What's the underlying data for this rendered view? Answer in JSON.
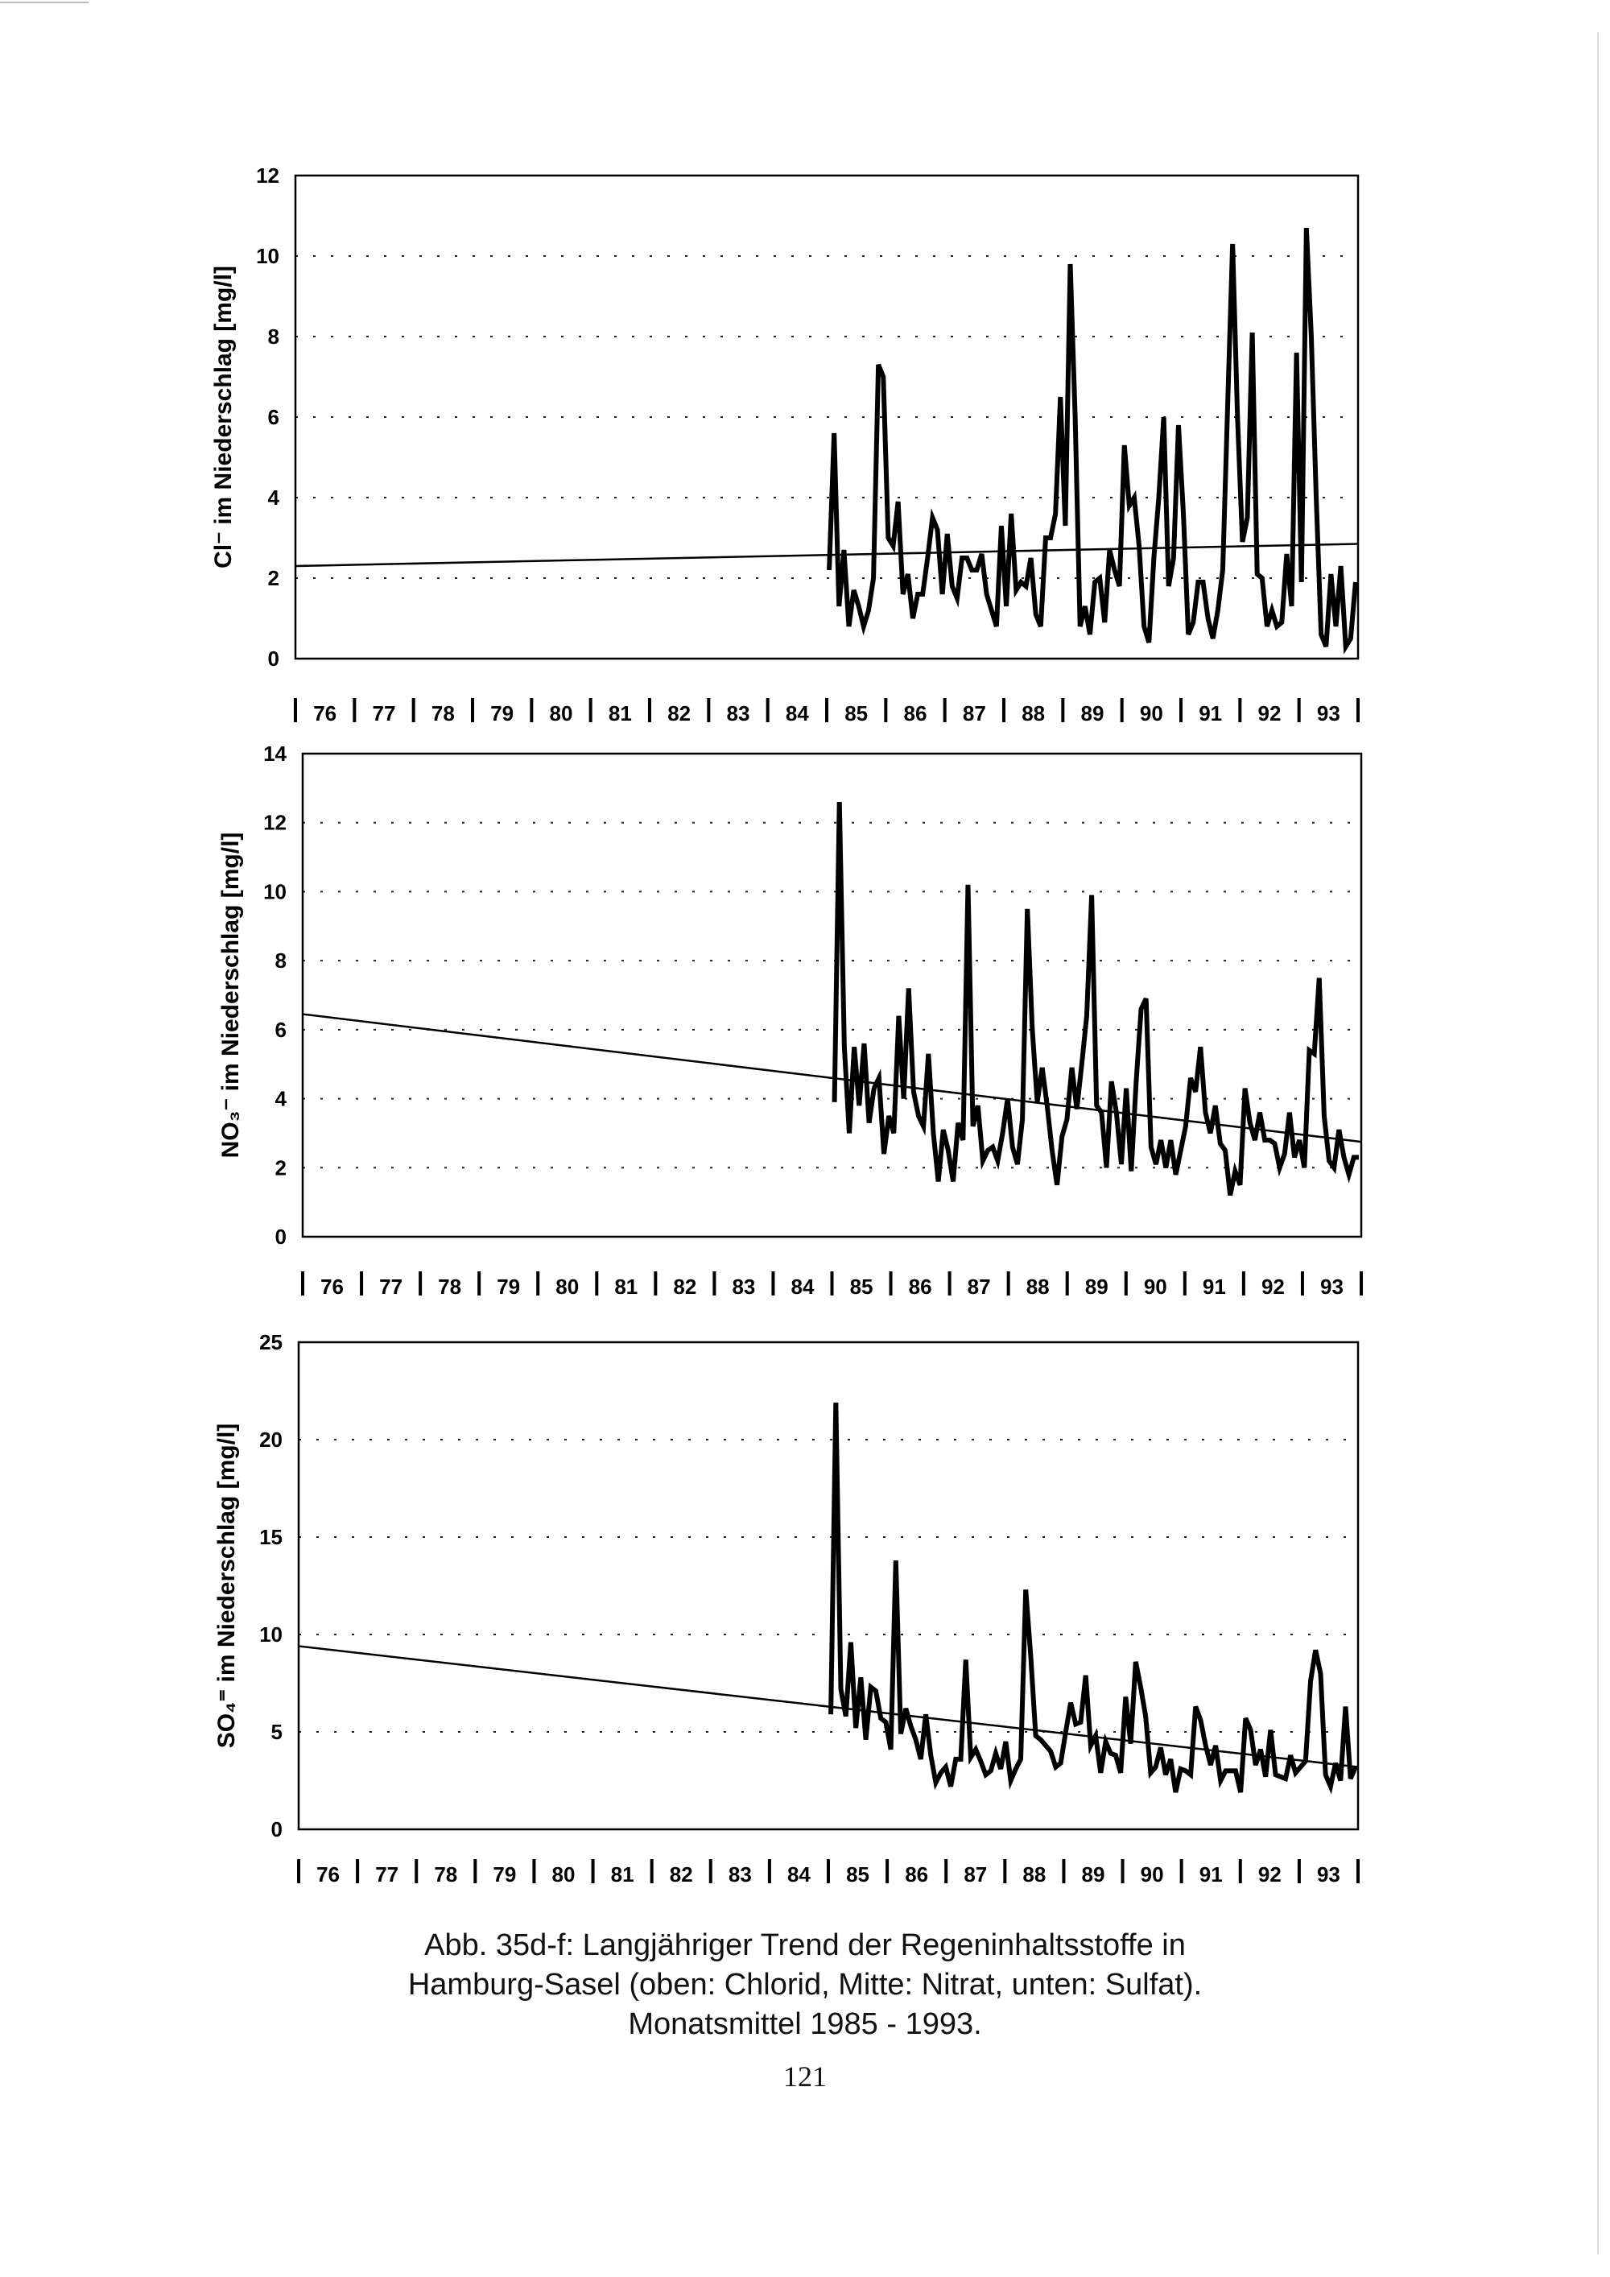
{
  "chart_data": [
    {
      "type": "line",
      "title": "",
      "xlabel": "",
      "ylabel": "Cl⁻ im Niederschlag [mg/l]",
      "ylim": [
        0,
        12
      ],
      "yticks": [
        0,
        2,
        4,
        6,
        8,
        10,
        12
      ],
      "xlim": [
        76,
        94
      ],
      "x_tick_labels": [
        "76",
        "77",
        "78",
        "79",
        "80",
        "81",
        "82",
        "83",
        "84",
        "85",
        "86",
        "87",
        "88",
        "89",
        "90",
        "91",
        "92",
        "93"
      ],
      "grid": "horizontal dotted",
      "series": [
        {
          "name": "Monatsmittel",
          "x_start": 85,
          "x_end": 94,
          "values": [
            2.2,
            5.6,
            1.3,
            2.7,
            0.8,
            1.7,
            1.3,
            0.8,
            1.2,
            2.0,
            7.3,
            7.0,
            3.0,
            2.8,
            3.9,
            1.6,
            2.1,
            1.0,
            1.6,
            1.6,
            2.5,
            3.5,
            3.2,
            1.6,
            3.1,
            1.8,
            1.5,
            2.5,
            2.5,
            2.2,
            2.2,
            2.6,
            1.6,
            1.2,
            0.8,
            3.3,
            1.3,
            3.6,
            1.7,
            1.9,
            1.8,
            2.5,
            1.1,
            0.8,
            3.0,
            3.0,
            3.6,
            6.5,
            3.3,
            9.8,
            6.0,
            0.8,
            1.3,
            0.6,
            1.9,
            2.0,
            0.9,
            2.7,
            2.2,
            1.8,
            5.3,
            3.8,
            4.0,
            2.8,
            0.8,
            0.4,
            2.5,
            4.0,
            6.0,
            1.8,
            2.5,
            5.8,
            3.6,
            0.6,
            0.9,
            1.9,
            1.9,
            1.0,
            0.5,
            1.2,
            2.2,
            6.3,
            10.3,
            6.0,
            2.9,
            3.5,
            8.1,
            2.1,
            2.0,
            0.8,
            1.2,
            0.8,
            0.9,
            2.6,
            1.3,
            7.6,
            1.9,
            10.7,
            8.0,
            4.0,
            0.6,
            0.3,
            2.1,
            0.8,
            2.3,
            0.3,
            0.5,
            1.9
          ]
        },
        {
          "name": "Trend",
          "x": [
            76,
            94
          ],
          "values": [
            2.3,
            2.85
          ]
        }
      ]
    },
    {
      "type": "line",
      "title": "",
      "xlabel": "",
      "ylabel": "NO₃⁻ im Niederschlag [mg/l]",
      "ylim": [
        0,
        14
      ],
      "yticks": [
        0,
        2,
        4,
        6,
        8,
        10,
        12,
        14
      ],
      "xlim": [
        76,
        94
      ],
      "x_tick_labels": [
        "76",
        "77",
        "78",
        "79",
        "80",
        "81",
        "82",
        "83",
        "84",
        "85",
        "86",
        "87",
        "88",
        "89",
        "90",
        "91",
        "92",
        "93"
      ],
      "grid": "horizontal dotted",
      "series": [
        {
          "name": "Monatsmittel",
          "x_start": 85,
          "x_end": 94,
          "values": [
            3.9,
            12.6,
            5.5,
            3.0,
            5.5,
            3.8,
            5.6,
            3.3,
            4.3,
            4.6,
            2.4,
            3.5,
            3.0,
            6.4,
            4.0,
            7.2,
            4.2,
            3.5,
            3.2,
            5.3,
            3.0,
            1.6,
            3.1,
            2.5,
            1.6,
            3.3,
            2.8,
            10.2,
            3.2,
            3.8,
            2.2,
            2.5,
            2.6,
            2.2,
            3.0,
            4.0,
            2.6,
            2.1,
            3.4,
            9.5,
            6.0,
            3.9,
            4.9,
            3.8,
            2.5,
            1.5,
            2.9,
            3.4,
            4.9,
            3.7,
            5.0,
            6.4,
            9.9,
            3.8,
            3.6,
            2.0,
            4.5,
            3.6,
            2.1,
            4.3,
            1.9,
            4.5,
            6.6,
            6.9,
            2.6,
            2.1,
            2.8,
            2.0,
            2.8,
            1.8,
            2.5,
            3.2,
            4.6,
            4.2,
            5.5,
            3.6,
            3.0,
            3.8,
            2.7,
            2.5,
            1.2,
            1.9,
            1.5,
            4.3,
            3.3,
            2.8,
            3.6,
            2.8,
            2.8,
            2.7,
            2.0,
            2.4,
            3.6,
            2.3,
            2.8,
            2.0,
            5.4,
            5.3,
            7.5,
            3.5,
            2.2,
            2.0,
            3.1,
            2.3,
            1.8,
            2.3,
            2.3
          ]
        },
        {
          "name": "Trend",
          "x": [
            76,
            94
          ],
          "values": [
            6.45,
            2.75
          ]
        }
      ]
    },
    {
      "type": "line",
      "title": "",
      "xlabel": "",
      "ylabel": "SO₄⁼ im Niederschlag [mg/l]",
      "ylim": [
        0,
        25
      ],
      "yticks": [
        0,
        5,
        10,
        15,
        20,
        25
      ],
      "xlim": [
        76,
        94
      ],
      "x_tick_labels": [
        "76",
        "77",
        "78",
        "79",
        "80",
        "81",
        "82",
        "83",
        "84",
        "85",
        "86",
        "87",
        "88",
        "89",
        "90",
        "91",
        "92",
        "93"
      ],
      "grid": "horizontal dotted",
      "series": [
        {
          "name": "Monatsmittel",
          "x_start": 85,
          "x_end": 94,
          "values": [
            5.9,
            21.9,
            7.2,
            5.8,
            9.6,
            5.2,
            7.8,
            4.6,
            7.3,
            7.1,
            5.7,
            5.5,
            4.1,
            13.8,
            4.9,
            6.2,
            5.3,
            4.6,
            3.6,
            5.9,
            3.8,
            2.4,
            2.9,
            3.2,
            2.2,
            3.6,
            3.6,
            8.7,
            3.7,
            4.1,
            3.5,
            2.8,
            3.0,
            3.9,
            3.1,
            4.5,
            2.5,
            3.1,
            3.6,
            12.3,
            8.9,
            4.8,
            4.6,
            4.3,
            4.0,
            3.2,
            3.4,
            5.0,
            6.5,
            5.4,
            5.5,
            7.9,
            4.3,
            4.8,
            2.9,
            4.5,
            3.9,
            3.8,
            2.9,
            6.8,
            4.4,
            8.6,
            7.3,
            5.8,
            2.9,
            3.2,
            4.2,
            2.8,
            3.6,
            1.9,
            3.1,
            3.0,
            2.8,
            6.3,
            5.6,
            4.3,
            3.3,
            4.3,
            2.5,
            3.0,
            3.0,
            3.0,
            1.9,
            5.7,
            5.1,
            3.3,
            4.1,
            2.7,
            5.1,
            2.8,
            2.7,
            2.6,
            3.8,
            2.9,
            3.2,
            3.5,
            7.6,
            9.2,
            8.0,
            2.8,
            2.2,
            3.4,
            2.5,
            6.3,
            2.6,
            3.2
          ]
        },
        {
          "name": "Trend",
          "x": [
            76,
            94
          ],
          "values": [
            9.4,
            3.2
          ]
        }
      ]
    }
  ],
  "caption": {
    "line1": "Abb. 35d-f: Langjähriger Trend der Regeninhaltsstoffe in",
    "line2": "Hamburg-Sasel (oben: Chlorid, Mitte: Nitrat, unten: Sulfat).",
    "line3": "Monatsmittel 1985 - 1993."
  },
  "page_number": "121"
}
